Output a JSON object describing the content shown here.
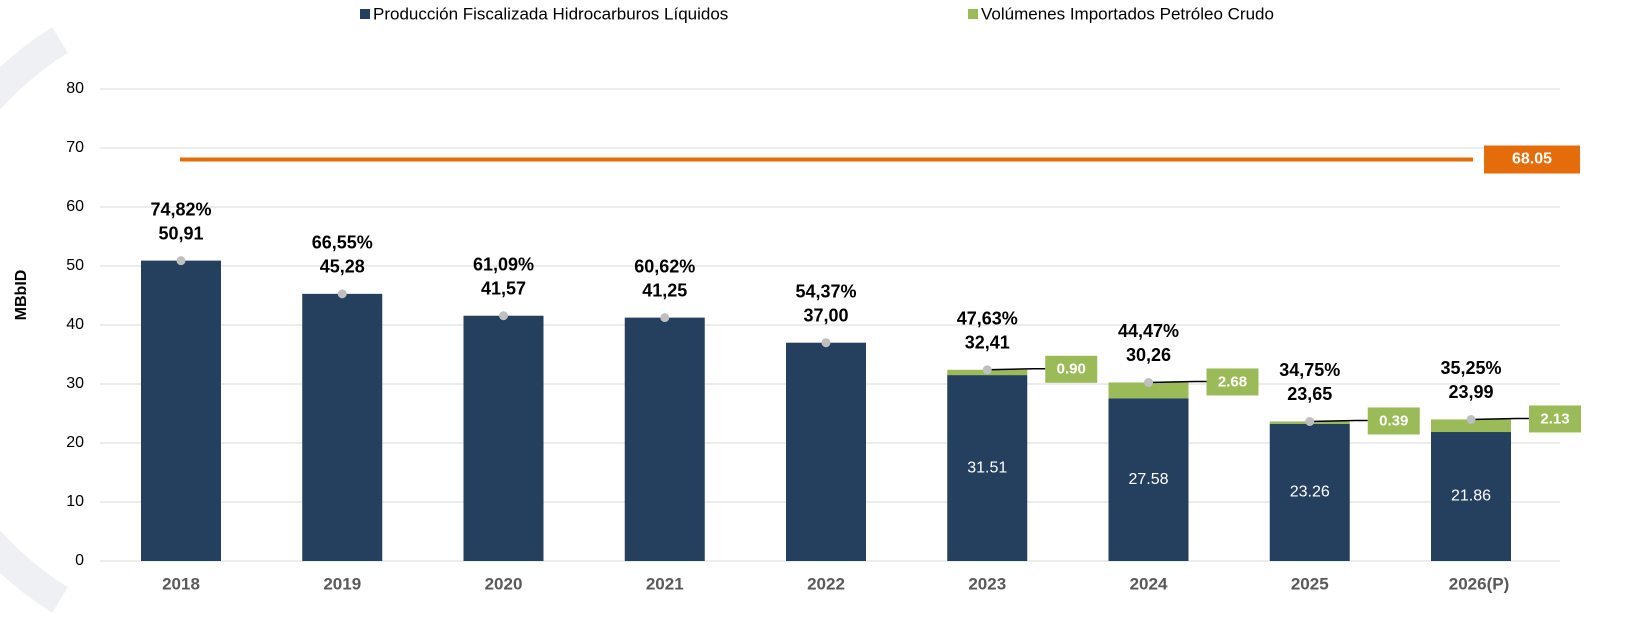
{
  "chart_data": {
    "type": "stacked_bar",
    "y_label": "MBbID",
    "categories": [
      "2018",
      "2019",
      "2020",
      "2021",
      "2022",
      "2023",
      "2024",
      "2025",
      "2026(P)"
    ],
    "series": [
      {
        "name": "Producción Fiscalizada Hidrocarburos Líquidos",
        "color": "#253f5f",
        "values": [
          50.91,
          45.28,
          41.57,
          41.25,
          37.0,
          31.51,
          27.58,
          23.26,
          21.86
        ],
        "value_labels": [
          null,
          null,
          null,
          null,
          null,
          "31.51",
          "27.58",
          "23.26",
          "21.86"
        ]
      },
      {
        "name": "Volúmenes Importados Petróleo Crudo",
        "color": "#9bbb59",
        "values": [
          null,
          null,
          null,
          null,
          null,
          0.9,
          2.68,
          0.39,
          2.13
        ],
        "value_labels": [
          null,
          null,
          null,
          null,
          null,
          "0.90",
          "2.68",
          "0.39",
          "2.13"
        ]
      }
    ],
    "totals": {
      "values": [
        50.91,
        45.28,
        41.57,
        41.25,
        37.0,
        32.41,
        30.26,
        23.65,
        23.99
      ],
      "value_labels": [
        "50,91",
        "45,28",
        "41,57",
        "41,25",
        "37,00",
        "32,41",
        "30,26",
        "23,65",
        "23,99"
      ]
    },
    "shares": {
      "values": [
        74.82,
        66.55,
        61.09,
        60.62,
        54.37,
        47.63,
        44.47,
        34.75,
        35.25
      ],
      "value_labels": [
        "74,82%",
        "66,55%",
        "61,09%",
        "60,62%",
        "54,37%",
        "47,63%",
        "44,47%",
        "34,75%",
        "35,25%"
      ]
    },
    "reference_line": {
      "value": 68.05,
      "color": "#e46c0a"
    },
    "ylim": [
      0,
      80
    ],
    "yticks": [
      0,
      10,
      20,
      30,
      40,
      50,
      60,
      70,
      80
    ],
    "grid": true,
    "legend": "top"
  }
}
